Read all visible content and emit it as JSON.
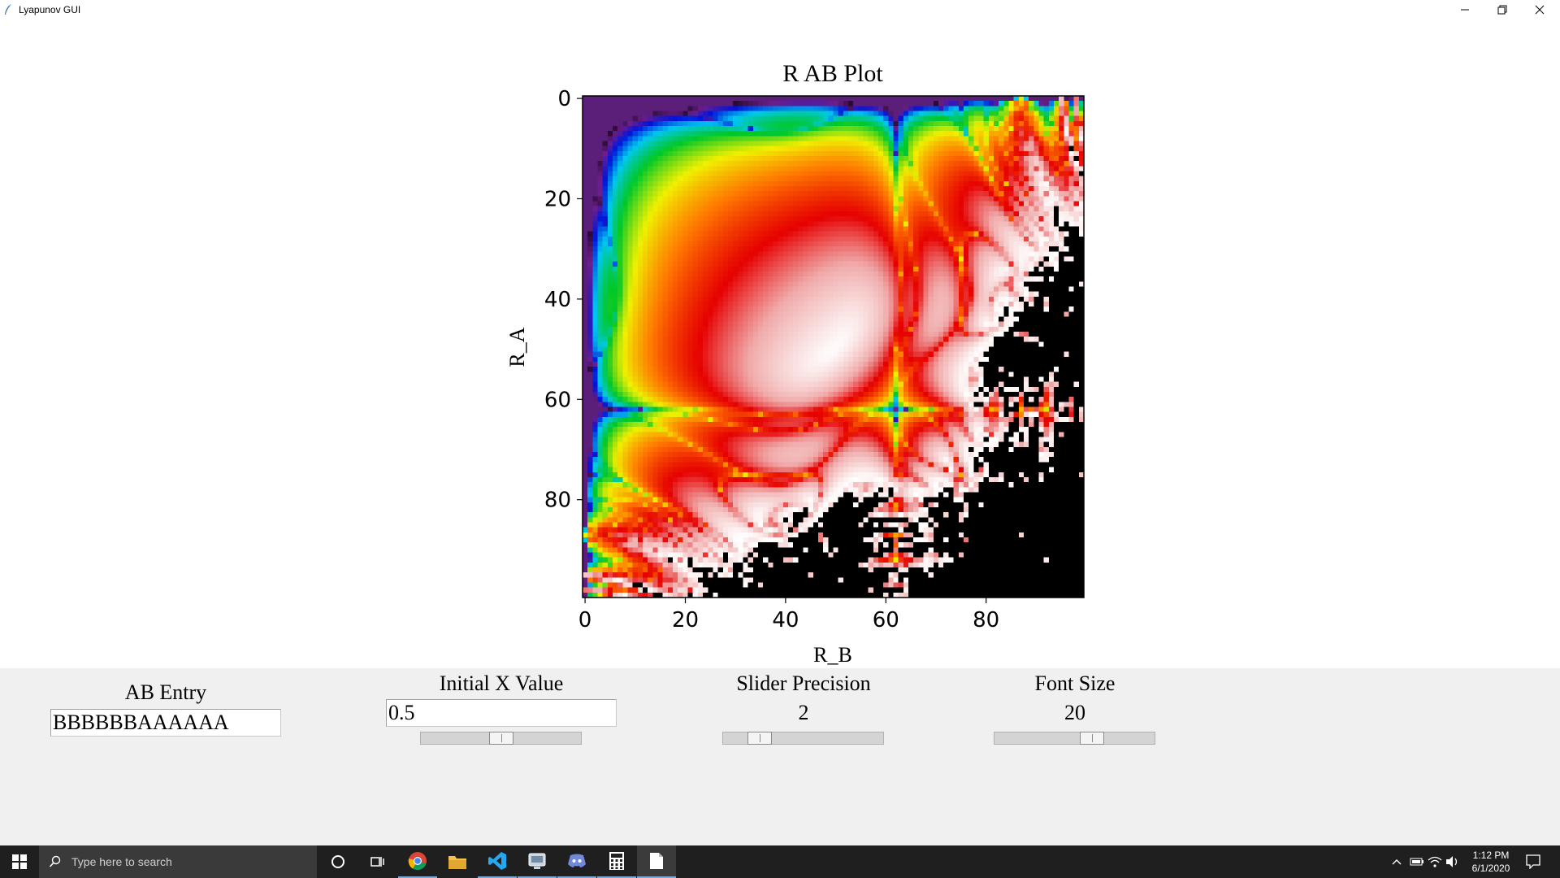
{
  "window": {
    "title": "Lyapunov GUI"
  },
  "chart_data": {
    "type": "heatmap",
    "title": "R AB Plot",
    "xlabel": "R_B",
    "ylabel": "R_A",
    "x_ticks": [
      "0",
      "20",
      "40",
      "60",
      "80"
    ],
    "y_ticks": [
      "0",
      "20",
      "40",
      "60",
      "80"
    ],
    "xlim": [
      0,
      99
    ],
    "ylim": [
      99,
      0
    ],
    "grid": "off",
    "colormap": "prism/gist_ncar-like (purple, blue, cyan, green, yellow, red, white, black)",
    "colors": {
      "background_region": "#5b1f7a",
      "chaotic_region": "#000000"
    }
  },
  "controls": {
    "ab_entry": {
      "label": "AB Entry",
      "value": "BBBBBBAAAAAA"
    },
    "initial_x": {
      "label": "Initial X Value",
      "value": "0.5",
      "slider_fraction": 0.5
    },
    "slider_precision": {
      "label": "Slider Precision",
      "value": "2",
      "slider_fraction": 0.18
    },
    "font_size": {
      "label": "Font Size",
      "value": "20",
      "slider_fraction": 0.63
    }
  },
  "taskbar": {
    "search_placeholder": "Type here to search",
    "apps": [
      "cortana-icon",
      "task-view-icon",
      "chrome-icon",
      "file-explorer-icon",
      "vscode-icon",
      "python-idle-icon",
      "discord-icon",
      "calculator-icon",
      "notepad-icon"
    ],
    "time": "1:12 PM",
    "date": "6/1/2020"
  }
}
